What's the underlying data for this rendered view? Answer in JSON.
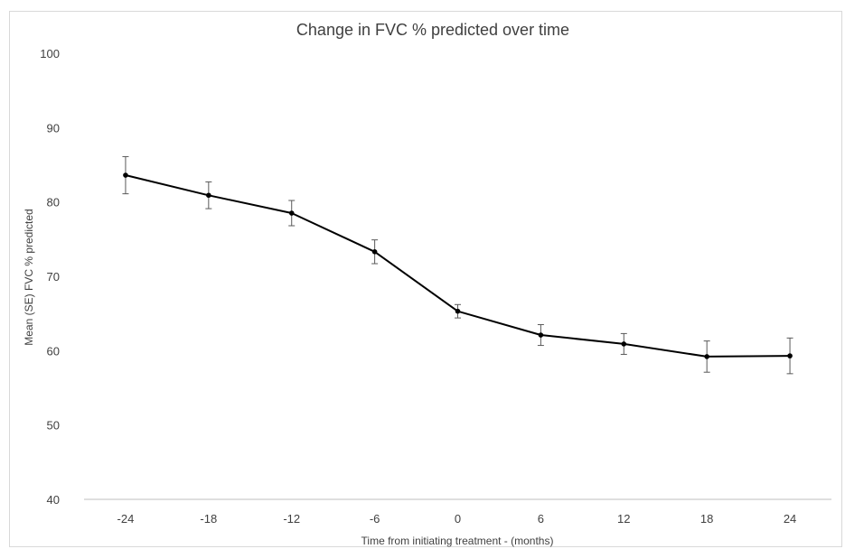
{
  "chart_data": {
    "type": "line",
    "title": "Change in FVC % predicted over time",
    "xlabel": "Time from initiating treatment - (months)",
    "ylabel": "Mean (SE)  FVC % predicted",
    "categories": [
      "-24",
      "-18",
      "-12",
      "-6",
      "0",
      "6",
      "12",
      "18",
      "24"
    ],
    "series": [
      {
        "values": [
          83.6,
          80.9,
          78.5,
          73.3,
          65.3,
          62.1,
          60.9,
          59.2,
          59.3
        ],
        "error": [
          2.5,
          1.8,
          1.7,
          1.6,
          0.9,
          1.4,
          1.4,
          2.1,
          2.4
        ]
      }
    ],
    "ylim": [
      40,
      100
    ],
    "yticks": [
      "40",
      "50",
      "60",
      "70",
      "80",
      "90",
      "100"
    ],
    "grid": false,
    "legend": "none",
    "line_color": "#000000",
    "error_bar_color": "#595959",
    "axis_color": "#bfbfbf"
  }
}
